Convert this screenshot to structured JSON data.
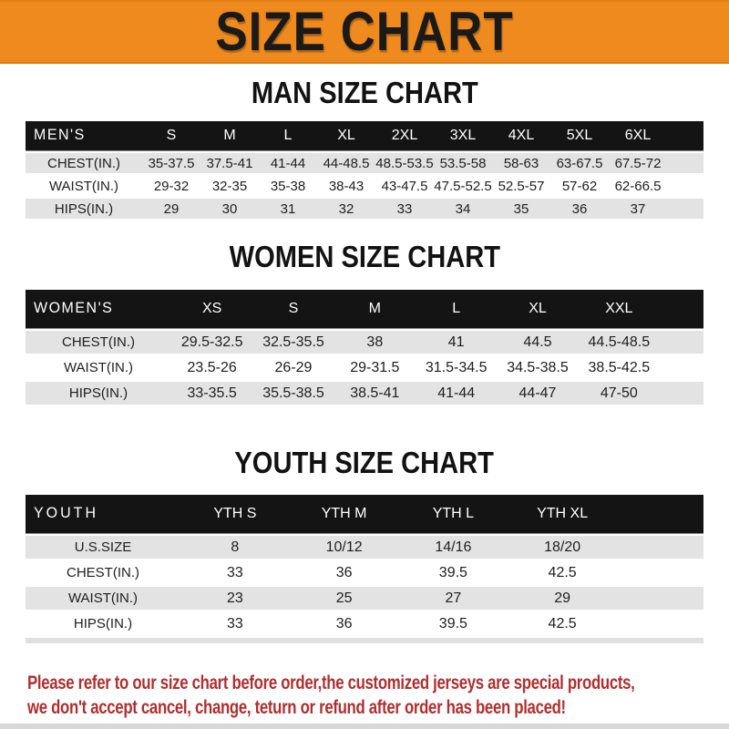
{
  "banner": {
    "title": "SIZE CHART",
    "bg_color": "#EE8A1E",
    "text_color": "#1A1A1A"
  },
  "colors": {
    "header_bar": "#141414",
    "row_gray": "#E3E3E3",
    "row_white": "#FFFFFF",
    "footer_red": "#AF2F2F"
  },
  "sections": {
    "men": {
      "title": "MAN SIZE CHART",
      "table": {
        "header_label": "MEN'S",
        "columns": [
          "S",
          "M",
          "L",
          "XL",
          "2XL",
          "3XL",
          "4XL",
          "5XL",
          "6XL"
        ],
        "rows": [
          {
            "label": "CHEST(IN.)",
            "cells": [
              "35-37.5",
              "37.5-41",
              "41-44",
              "44-48.5",
              "48.5-53.5",
              "53.5-58",
              "58-63",
              "63-67.5",
              "67.5-72"
            ]
          },
          {
            "label": "WAIST(IN.)",
            "cells": [
              "29-32",
              "32-35",
              "35-38",
              "38-43",
              "43-47.5",
              "47.5-52.5",
              "52.5-57",
              "57-62",
              "62-66.5"
            ]
          },
          {
            "label": "HIPS(IN.)",
            "cells": [
              "29",
              "30",
              "31",
              "32",
              "33",
              "34",
              "35",
              "36",
              "37"
            ]
          }
        ]
      }
    },
    "women": {
      "title": "WOMEN SIZE CHART",
      "table": {
        "header_label": "WOMEN'S",
        "columns": [
          "XS",
          "S",
          "M",
          "L",
          "XL",
          "XXL"
        ],
        "rows": [
          {
            "label": "CHEST(IN.)",
            "cells": [
              "29.5-32.5",
              "32.5-35.5",
              "38",
              "41",
              "44.5",
              "44.5-48.5"
            ]
          },
          {
            "label": "WAIST(IN.)",
            "cells": [
              "23.5-26",
              "26-29",
              "29-31.5",
              "31.5-34.5",
              "34.5-38.5",
              "38.5-42.5"
            ]
          },
          {
            "label": "HIPS(IN.)",
            "cells": [
              "33-35.5",
              "35.5-38.5",
              "38.5-41",
              "41-44",
              "44-47",
              "47-50"
            ]
          }
        ]
      }
    },
    "youth": {
      "title": "YOUTH SIZE CHART",
      "table": {
        "header_label": "YOUTH",
        "columns": [
          "YTH S",
          "YTH M",
          "YTH L",
          "YTH XL"
        ],
        "rows": [
          {
            "label": "U.S.SIZE",
            "cells": [
              "8",
              "10/12",
              "14/16",
              "18/20"
            ]
          },
          {
            "label": "CHEST(IN.)",
            "cells": [
              "33",
              "36",
              "39.5",
              "42.5"
            ]
          },
          {
            "label": "WAIST(IN.)",
            "cells": [
              "23",
              "25",
              "27",
              "29"
            ]
          },
          {
            "label": "HIPS(IN.)",
            "cells": [
              "33",
              "36",
              "39.5",
              "42.5"
            ]
          }
        ]
      }
    }
  },
  "footer": {
    "line1": "Please refer to our size chart before order,the customized jerseys are special products,",
    "line2": "we don't accept cancel, change, teturn or refund after order has been placed!"
  }
}
